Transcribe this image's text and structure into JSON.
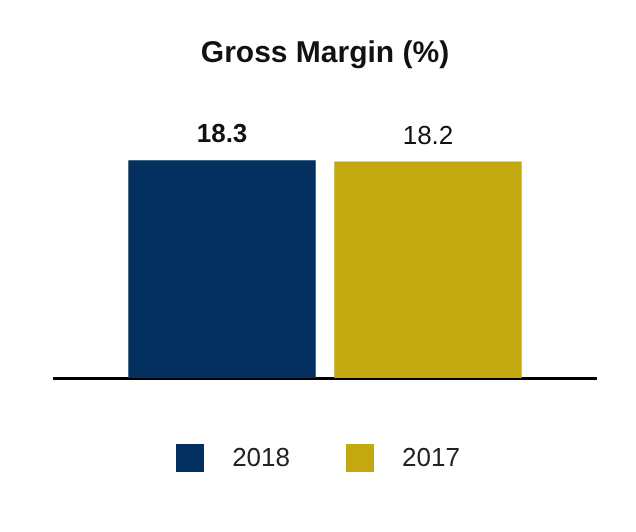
{
  "chart_data": {
    "type": "bar",
    "title": "Gross Margin (%)",
    "categories": [
      null
    ],
    "series": [
      {
        "name": "2018",
        "color": "#03305f",
        "values": [
          18.3
        ]
      },
      {
        "name": "2017",
        "color": "#c3a90f",
        "values": [
          18.2
        ]
      }
    ],
    "data_labels": true,
    "legend": "bottom"
  }
}
